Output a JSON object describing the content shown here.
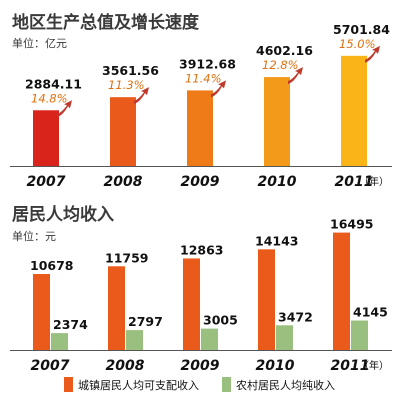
{
  "colors": {
    "title": "#3a3a3a",
    "value_text": "#111111",
    "growth_text": "#e07010",
    "growth_arrow": "#c0392b",
    "axis_line": "#555555",
    "year_text": "#111111",
    "gdp_bar_colors": [
      "#d8241b",
      "#ea5a1a",
      "#ef7a18",
      "#f49a1a",
      "#fbb417"
    ],
    "urban": "#ea5a1a",
    "rural": "#9ac07f"
  },
  "chart_data": [
    {
      "type": "bar",
      "title": "地区生产总值及增长速度",
      "unit": "单位：亿元",
      "categories": [
        "2007",
        "2008",
        "2009",
        "2010",
        "2011"
      ],
      "year_suffix": "（年）",
      "values": [
        2884.11,
        3561.56,
        3912.68,
        4602.16,
        5701.84
      ],
      "value_labels": [
        "2884.11",
        "3561.56",
        "3912.68",
        "4602.16",
        "5701.84"
      ],
      "growth_labels": [
        "14.8%",
        "11.3%",
        "11.4%",
        "12.8%",
        "15.0%"
      ],
      "ylim": [
        0,
        5900
      ],
      "grid": false
    },
    {
      "type": "bar",
      "title": "居民人均收入",
      "unit": "单位：元",
      "categories": [
        "2007",
        "2008",
        "2009",
        "2010",
        "2011"
      ],
      "series": [
        {
          "name": "城镇居民人均可支配收入",
          "values": [
            10678,
            11759,
            12863,
            14143,
            16495
          ],
          "value_labels": [
            "10678",
            "11759",
            "12863",
            "14143",
            "16495"
          ]
        },
        {
          "name": "农村居民人均纯收入",
          "values": [
            2374,
            2797,
            3005,
            3472,
            4145
          ],
          "value_labels": [
            "2374",
            "2797",
            "3005",
            "3472",
            "4145"
          ]
        }
      ],
      "ylim": [
        0,
        17000
      ],
      "grid": false,
      "legend_position": "bottom"
    }
  ]
}
